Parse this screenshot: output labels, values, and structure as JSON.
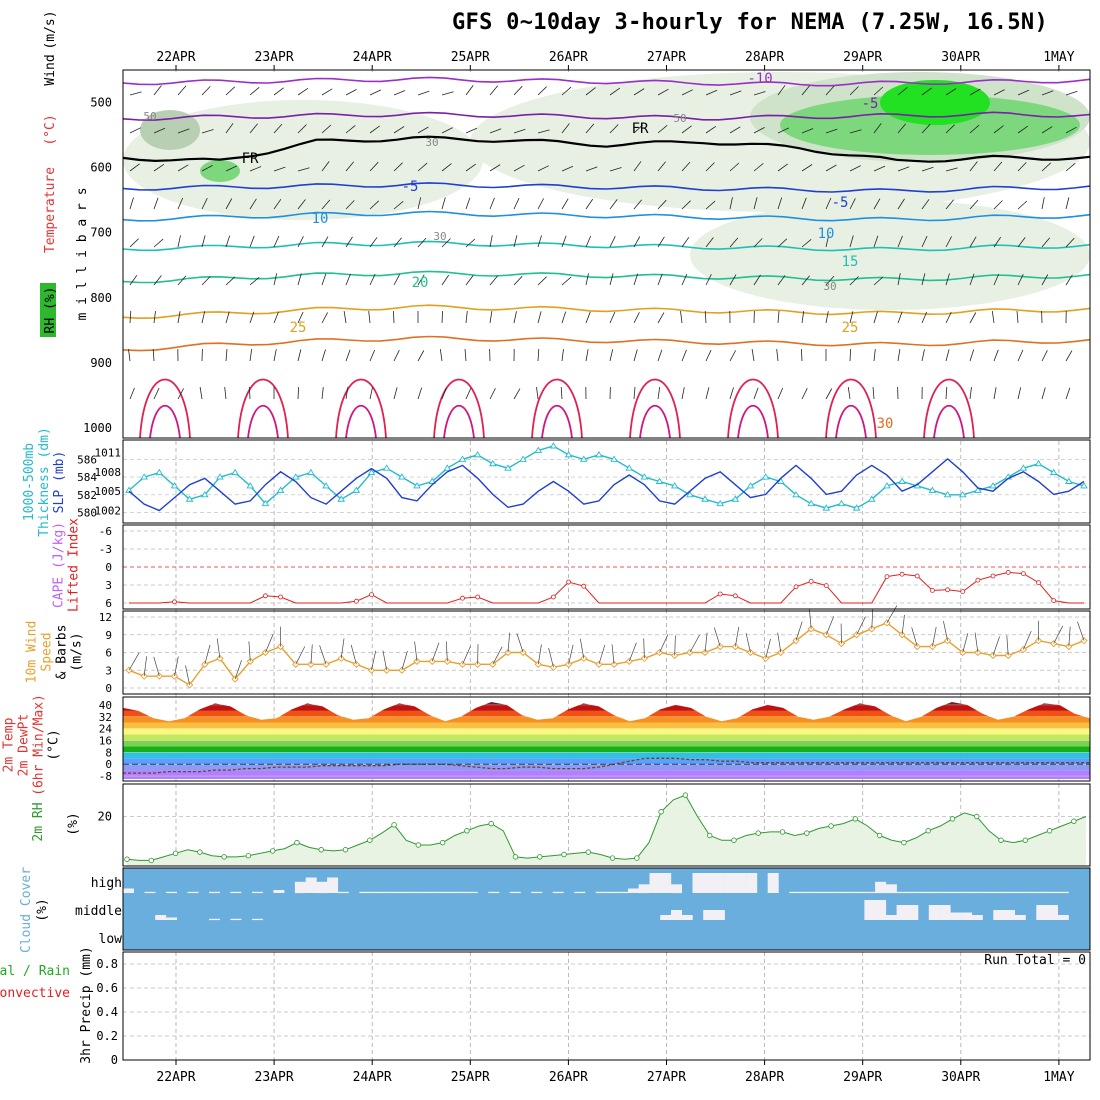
{
  "title": "GFS 0~10day 3-hourly for NEMA (7.25W, 16.5N)",
  "colors": {
    "rh": "#2db82d",
    "temp_label": "#e3342f",
    "wind_label": "#000000",
    "thickness": "#22bbcc",
    "slp": "#1f3fcf",
    "cape": "#c060ff",
    "lifted": "#e02020",
    "wind10": "#e8a030",
    "rh2m": "#2e9a2e",
    "cloud": "#6aaedd",
    "precip_total": "#22aa22",
    "precip_conv": "#e02020"
  },
  "dates": [
    "22APR",
    "23APR",
    "24APR",
    "25APR",
    "26APR",
    "27APR",
    "28APR",
    "29APR",
    "30APR",
    "1MAY"
  ],
  "chart_data": [
    {
      "panel": "upper-air",
      "type": "contour",
      "ylabel": "m i l l i b a r s",
      "legend_labels": [
        "RH (%)",
        "Temperature",
        "(°C)",
        "Wind",
        "(m/s)"
      ],
      "yticks": [
        500,
        600,
        700,
        800,
        900,
        1000
      ],
      "ylim": [
        450,
        1000
      ],
      "contour_labels": [
        "-10",
        "-5",
        "FR",
        "-5",
        "10",
        "20",
        "25",
        "30",
        "-5",
        "10",
        "15",
        "25",
        "FR",
        "50",
        "30",
        "30",
        "50",
        "30"
      ],
      "isotherms": [
        {
          "name": "-10",
          "color": "#9a2fc8",
          "p": [
            470,
            468,
            466,
            464,
            466,
            468,
            470,
            472,
            470,
            468,
            466
          ]
        },
        {
          "name": "-5",
          "color": "#7a1fa8",
          "p": [
            525,
            522,
            520,
            518,
            520,
            522,
            524,
            522,
            520,
            518,
            520
          ]
        },
        {
          "name": "0",
          "color": "#000000",
          "p": [
            585,
            590,
            560,
            555,
            558,
            565,
            560,
            570,
            590,
            585,
            585
          ]
        },
        {
          "name": "5",
          "color": "#1f3fcf",
          "p": [
            632,
            630,
            628,
            626,
            628,
            630,
            632,
            634,
            636,
            632,
            630
          ]
        },
        {
          "name": "10",
          "color": "#1e90e0",
          "p": [
            680,
            676,
            672,
            670,
            672,
            674,
            676,
            678,
            680,
            676,
            674
          ]
        },
        {
          "name": "15",
          "color": "#1fbfb5",
          "p": [
            725,
            722,
            718,
            716,
            718,
            720,
            722,
            724,
            726,
            722,
            720
          ]
        },
        {
          "name": "20",
          "color": "#20c090",
          "p": [
            775,
            770,
            765,
            762,
            764,
            766,
            768,
            770,
            772,
            768,
            766
          ]
        },
        {
          "name": "25",
          "color": "#e3a020",
          "p": [
            830,
            824,
            818,
            814,
            816,
            818,
            820,
            822,
            824,
            820,
            818
          ]
        },
        {
          "name": "30",
          "color": "#e07020",
          "p": [
            880,
            872,
            866,
            862,
            864,
            866,
            868,
            870,
            872,
            868,
            866
          ]
        }
      ]
    },
    {
      "panel": "thickness-slp",
      "type": "line",
      "ylabels": [
        "1000-500mb",
        "Thickness (dm)",
        "SLP (mb)"
      ],
      "left_ticks": [
        580,
        582,
        584,
        586
      ],
      "right_ticks": [
        1002,
        1005,
        1008,
        1011
      ],
      "series": [
        {
          "name": "Thickness",
          "values": [
            582.5,
            584,
            584.5,
            583,
            581.5,
            582,
            584,
            584.5,
            583,
            581,
            582.5,
            584,
            584.5,
            583,
            581.5,
            582.5,
            584.5,
            585,
            584,
            583,
            583.5,
            585,
            586,
            586.5,
            585.5,
            585,
            586,
            587,
            587.5,
            586.5,
            586,
            586.5,
            586,
            585,
            584,
            583.5,
            583,
            582,
            581.5,
            581,
            581.5,
            583,
            584,
            583.5,
            582,
            581,
            580.5,
            581,
            580.5,
            581.5,
            583,
            583.5,
            583,
            582.5,
            582,
            582,
            582.5,
            583,
            584,
            585,
            585.5,
            584.5,
            583.5,
            583
          ]
        },
        {
          "name": "SLP",
          "values": [
            1005,
            1003,
            1002,
            1004,
            1006,
            1007,
            1005,
            1003,
            1003.5,
            1006,
            1008,
            1006.5,
            1004,
            1003,
            1005,
            1007,
            1008.5,
            1007,
            1004,
            1003.5,
            1006,
            1008,
            1009,
            1007,
            1004.5,
            1002.5,
            1003,
            1005,
            1006.5,
            1005,
            1003,
            1003.5,
            1006,
            1007.5,
            1006,
            1003.5,
            1003,
            1005,
            1007,
            1008,
            1006,
            1004,
            1004.5,
            1007,
            1009,
            1007,
            1004.5,
            1005,
            1007.5,
            1009,
            1007.5,
            1005,
            1006,
            1008,
            1010,
            1008,
            1005.5,
            1005,
            1007,
            1008,
            1006.5,
            1004.5,
            1005,
            1006.5
          ]
        }
      ]
    },
    {
      "panel": "cape-li",
      "type": "line",
      "ylabels": [
        "CAPE (J/kg)",
        "Lifted Index"
      ],
      "yticks": [
        -6,
        -3,
        0,
        3,
        6
      ],
      "series": [
        {
          "name": "Lifted Index",
          "values": [
            6,
            6,
            6,
            5.8,
            6,
            6,
            6,
            6,
            6,
            4.8,
            5,
            6,
            6,
            6,
            6,
            5.7,
            4.6,
            6,
            6,
            6,
            6,
            6,
            5.2,
            5,
            6,
            6,
            6,
            6,
            5,
            2.5,
            3.2,
            6,
            6,
            6,
            6,
            6,
            6,
            6,
            6,
            4.5,
            4.8,
            6,
            6,
            6,
            3.3,
            2.4,
            3.1,
            6,
            6,
            6,
            1.6,
            1.2,
            1.5,
            3.9,
            3.8,
            4.1,
            2.2,
            1.5,
            0.9,
            1.1,
            2.6,
            5.6,
            6,
            6
          ]
        }
      ]
    },
    {
      "panel": "wind10m",
      "type": "line",
      "ylabels": [
        "10m Wind",
        "Speed",
        "& Barbs",
        "(m/s)"
      ],
      "yticks": [
        0,
        3,
        6,
        9,
        12
      ],
      "series": [
        {
          "name": "10m Wind Speed",
          "values": [
            3,
            2,
            2,
            2,
            0.5,
            4,
            5,
            1.5,
            4.5,
            6,
            7,
            4,
            4,
            4,
            5,
            4,
            3,
            3,
            3,
            4.5,
            4.5,
            4.5,
            4,
            4,
            4,
            6,
            6,
            4,
            3.5,
            4,
            5,
            4,
            4,
            4.5,
            5,
            6,
            5.5,
            6,
            6,
            7,
            7,
            6,
            5,
            6,
            8,
            10,
            9,
            7.5,
            9,
            10,
            11,
            9,
            7,
            7,
            8,
            6,
            6,
            5.5,
            5.5,
            6.5,
            8,
            7.5,
            7,
            8
          ]
        }
      ]
    },
    {
      "panel": "temp2m",
      "type": "area",
      "ylabels": [
        "2m Temp",
        "2m DewPt",
        "(6hr Min/Max)",
        "(°C)"
      ],
      "yticks": [
        -8,
        0,
        8,
        16,
        24,
        32,
        40
      ],
      "series": [
        {
          "name": "2m Temp",
          "values": [
            38,
            36,
            31,
            29,
            31,
            37,
            41,
            39,
            33,
            30,
            31,
            37,
            41,
            39,
            33,
            30,
            31,
            37,
            41,
            39,
            33,
            29,
            32,
            38,
            42,
            40,
            33,
            30,
            31,
            37,
            41,
            39,
            33,
            29,
            31,
            37,
            40,
            38,
            32,
            29,
            31,
            37,
            40,
            38,
            32,
            30,
            32,
            37,
            41,
            39,
            33,
            29,
            32,
            38,
            42,
            40,
            34,
            30,
            32,
            37,
            41,
            40,
            34,
            31
          ]
        },
        {
          "name": "2m DewPt",
          "values": [
            -6,
            -6,
            -6,
            -5,
            -5,
            -5,
            -4,
            -4,
            -3,
            -3,
            -2,
            -2,
            -2,
            -1,
            -1,
            -1,
            -1,
            -1,
            0,
            0,
            0,
            0,
            -1,
            -2,
            -3,
            -3,
            -2,
            -2,
            -3,
            -3,
            -3,
            -2,
            0,
            2,
            4,
            4,
            4,
            3,
            3,
            2,
            2,
            1,
            1,
            1,
            1,
            1,
            1,
            1,
            1,
            1,
            1,
            1,
            1,
            1,
            1,
            1,
            1,
            1,
            1,
            1,
            1,
            1,
            1,
            1
          ]
        }
      ]
    },
    {
      "panel": "rh2m",
      "type": "area",
      "ylabels": [
        "2m RH",
        "(%)"
      ],
      "yticks": [
        20
      ],
      "series": [
        {
          "name": "2m RH",
          "values": [
            2,
            1.5,
            1.5,
            3,
            4.5,
            6,
            5,
            3.5,
            3,
            3,
            3.5,
            4.5,
            5.5,
            6.5,
            9,
            7,
            6,
            5.5,
            6,
            8,
            10,
            13,
            16.5,
            10,
            8,
            8,
            9,
            12,
            14,
            16,
            17,
            14,
            3,
            2.5,
            3,
            3.5,
            4,
            4.5,
            5,
            4,
            2.5,
            2,
            2.5,
            9,
            22,
            27,
            29,
            20,
            12,
            10,
            10,
            12,
            13,
            13.5,
            13.5,
            12,
            13,
            15,
            16,
            17,
            19,
            16,
            12,
            10,
            9,
            11,
            14,
            16,
            19,
            21.5,
            20,
            14,
            10,
            9,
            10,
            12,
            14,
            16,
            18,
            20
          ]
        }
      ]
    },
    {
      "panel": "cloud",
      "type": "bar",
      "ylabels": [
        "Cloud Cover",
        "(%)"
      ],
      "yticks": [
        "high",
        "middle",
        "low"
      ],
      "series": [
        {
          "name": "high",
          "values": [
            18,
            0,
            5,
            0,
            5,
            0,
            5,
            0,
            5,
            0,
            5,
            0,
            5,
            0,
            12,
            0,
            45,
            62,
            45,
            62,
            5,
            0,
            5,
            5,
            5,
            5,
            5,
            5,
            5,
            5,
            5,
            5,
            5,
            0,
            5,
            0,
            5,
            0,
            5,
            0,
            5,
            0,
            5,
            0,
            5,
            5,
            5,
            18,
            35,
            80,
            80,
            35,
            0,
            80,
            80,
            80,
            80,
            80,
            80,
            0,
            80,
            0,
            5,
            5,
            5,
            5,
            5,
            5,
            5,
            5,
            45,
            35,
            5,
            5,
            5,
            5,
            5,
            5,
            5,
            5,
            5,
            5,
            5,
            5,
            5,
            5,
            5,
            5,
            0,
            0
          ]
        },
        {
          "name": "middle",
          "values": [
            0,
            0,
            0,
            20,
            10,
            0,
            0,
            0,
            5,
            0,
            5,
            0,
            5,
            0,
            0,
            0,
            0,
            0,
            0,
            0,
            0,
            0,
            0,
            0,
            0,
            0,
            0,
            0,
            0,
            0,
            0,
            0,
            0,
            0,
            0,
            0,
            0,
            0,
            0,
            0,
            0,
            0,
            0,
            0,
            0,
            0,
            0,
            0,
            0,
            0,
            20,
            40,
            20,
            0,
            40,
            40,
            0,
            0,
            0,
            0,
            0,
            0,
            0,
            0,
            0,
            0,
            0,
            0,
            0,
            80,
            80,
            20,
            60,
            60,
            0,
            60,
            60,
            30,
            30,
            20,
            0,
            40,
            40,
            20,
            0,
            60,
            60,
            20,
            0,
            0
          ]
        },
        {
          "name": "low",
          "values": [
            0,
            0,
            0,
            0,
            0,
            0,
            0,
            0,
            0,
            0,
            0,
            0,
            0,
            0,
            0,
            0,
            0,
            0,
            0,
            0,
            0,
            0,
            0,
            0,
            0,
            0,
            0,
            0,
            0,
            0,
            0,
            0,
            0,
            0,
            0,
            0,
            0,
            0,
            0,
            0,
            0,
            0,
            0,
            0,
            0,
            0,
            0,
            0,
            0,
            0,
            0,
            0,
            0,
            0,
            0,
            0,
            0,
            0,
            0,
            0,
            0,
            0,
            0,
            0,
            0,
            0,
            0,
            0,
            0,
            0,
            0,
            0,
            0,
            0,
            0,
            0,
            0,
            0,
            0,
            0,
            0,
            0,
            0,
            0,
            0,
            0,
            0,
            0,
            0,
            0
          ]
        }
      ]
    },
    {
      "panel": "precip",
      "type": "bar",
      "ylabels": [
        "3hr Precip (mm)",
        "Total / Rain",
        "Convective"
      ],
      "yticks": [
        0,
        0.2,
        0.4,
        0.6,
        0.8
      ],
      "ylim": [
        0,
        0.9
      ],
      "run_total": "Run Total = 0",
      "series": [
        {
          "name": "Total / Rain",
          "values": []
        },
        {
          "name": "Convective",
          "values": []
        }
      ]
    }
  ]
}
